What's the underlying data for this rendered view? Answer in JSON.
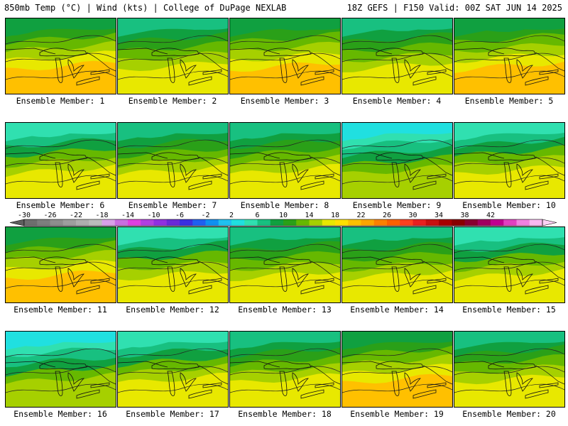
{
  "header": {
    "left": "850mb Temp (°C) | Wind (kts) | College of DuPage NEXLAB",
    "right": "18Z GEFS | F150 Valid: 00Z SAT JUN 14 2025"
  },
  "panels": [
    {
      "label": "Ensemble Member: 1"
    },
    {
      "label": "Ensemble Member: 2"
    },
    {
      "label": "Ensemble Member: 3"
    },
    {
      "label": "Ensemble Member: 4"
    },
    {
      "label": "Ensemble Member: 5"
    },
    {
      "label": "Ensemble Member: 6"
    },
    {
      "label": "Ensemble Member: 7"
    },
    {
      "label": "Ensemble Member: 8"
    },
    {
      "label": "Ensemble Member: 9"
    },
    {
      "label": "Ensemble Member: 10"
    },
    {
      "label": "Ensemble Member: 11"
    },
    {
      "label": "Ensemble Member: 12"
    },
    {
      "label": "Ensemble Member: 13"
    },
    {
      "label": "Ensemble Member: 14"
    },
    {
      "label": "Ensemble Member: 15"
    },
    {
      "label": "Ensemble Member: 16"
    },
    {
      "label": "Ensemble Member: 17"
    },
    {
      "label": "Ensemble Member: 18"
    },
    {
      "label": "Ensemble Member: 19"
    },
    {
      "label": "Ensemble Member: 20"
    }
  ],
  "colorbar": {
    "ticks": [
      "-30",
      "-26",
      "-22",
      "-18",
      "-14",
      "-10",
      "-6",
      "-2",
      "2",
      "6",
      "10",
      "14",
      "18",
      "22",
      "26",
      "30",
      "34",
      "38",
      "42"
    ],
    "colors": [
      "#6e6e6e",
      "#7e7e7e",
      "#8e8e8e",
      "#9e9e9e",
      "#aeaeae",
      "#bcbcbc",
      "#d8a0e8",
      "#c86ee0",
      "#e040e0",
      "#b040e0",
      "#9030e0",
      "#6a2ad8",
      "#3a30e0",
      "#2060f0",
      "#1090f0",
      "#20c0f0",
      "#20e0e0",
      "#30e0b0",
      "#18c080",
      "#10a040",
      "#2aa018",
      "#66b800",
      "#a6d000",
      "#e8e800",
      "#ffe000",
      "#ffc000",
      "#ffa500",
      "#ff8000",
      "#ff6000",
      "#ff4020",
      "#e82020",
      "#c81010",
      "#a80000",
      "#880000",
      "#880030",
      "#a00060",
      "#c00090",
      "#e040c0",
      "#f080e0",
      "#f8b8f0"
    ]
  }
}
